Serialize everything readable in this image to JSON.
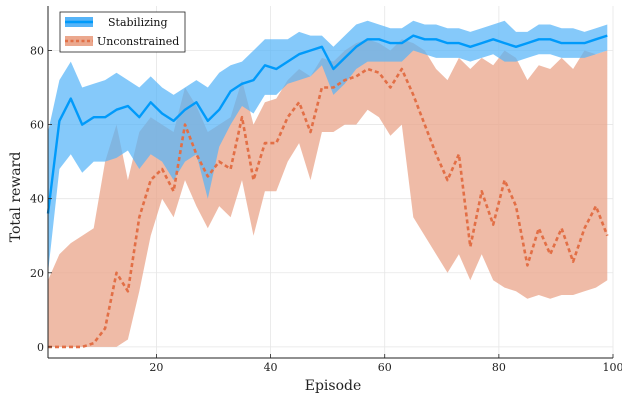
{
  "chart_data": {
    "type": "line",
    "title": "",
    "xlabel": "Episode",
    "ylabel": "Total reward",
    "xlim": [
      1,
      100
    ],
    "ylim": [
      -3,
      92
    ],
    "xticks": [
      20,
      40,
      60,
      80,
      100
    ],
    "yticks": [
      0,
      20,
      40,
      60,
      80
    ],
    "grid": true,
    "legend_position": "top-left",
    "series": [
      {
        "name": "Stabilizing",
        "color": "#009AFA",
        "band_color": "#56B4F8",
        "x": [
          1,
          3,
          5,
          7,
          9,
          11,
          13,
          15,
          17,
          19,
          21,
          23,
          25,
          27,
          29,
          31,
          33,
          35,
          37,
          39,
          41,
          43,
          45,
          47,
          49,
          51,
          53,
          55,
          57,
          59,
          61,
          63,
          65,
          67,
          69,
          71,
          73,
          75,
          77,
          79,
          81,
          83,
          85,
          87,
          89,
          91,
          93,
          95,
          97,
          99
        ],
        "values": [
          36,
          61,
          67,
          60,
          62,
          62,
          64,
          65,
          62,
          66,
          63,
          61,
          64,
          66,
          61,
          64,
          69,
          71,
          72,
          76,
          75,
          77,
          79,
          80,
          81,
          75,
          78,
          81,
          83,
          83,
          82,
          82,
          84,
          83,
          83,
          82,
          82,
          81,
          82,
          83,
          82,
          81,
          82,
          83,
          83,
          82,
          82,
          82,
          83,
          84
        ],
        "upper": [
          58,
          72,
          77,
          70,
          71,
          72,
          74,
          72,
          70,
          73,
          70,
          68,
          70,
          72,
          70,
          74,
          76,
          77,
          80,
          83,
          83,
          83,
          85,
          84,
          84,
          81,
          84,
          87,
          88,
          87,
          86,
          86,
          88,
          87,
          87,
          86,
          86,
          85,
          86,
          87,
          88,
          85,
          85,
          87,
          87,
          86,
          86,
          85,
          86,
          87
        ],
        "lower": [
          20,
          48,
          52,
          47,
          50,
          50,
          51,
          53,
          48,
          52,
          50,
          45,
          50,
          52,
          40,
          54,
          60,
          65,
          63,
          68,
          68,
          71,
          72,
          73,
          76,
          68,
          71,
          75,
          77,
          77,
          77,
          77,
          80,
          79,
          78,
          78,
          78,
          77,
          78,
          79,
          77,
          77,
          78,
          79,
          79,
          78,
          78,
          78,
          79,
          80
        ]
      },
      {
        "name": "Unconstrained",
        "color": "#E26F46",
        "band_color": "#EBA88E",
        "x": [
          1,
          3,
          5,
          7,
          9,
          11,
          13,
          15,
          17,
          19,
          21,
          23,
          25,
          27,
          29,
          31,
          33,
          35,
          37,
          39,
          41,
          43,
          45,
          47,
          49,
          51,
          53,
          55,
          57,
          59,
          61,
          63,
          65,
          67,
          69,
          71,
          73,
          75,
          77,
          79,
          81,
          83,
          85,
          87,
          89,
          91,
          93,
          95,
          97,
          99
        ],
        "values": [
          0,
          0,
          0,
          0,
          1,
          5,
          20,
          15,
          35,
          45,
          48,
          42,
          60,
          52,
          46,
          50,
          48,
          62,
          45,
          55,
          55,
          62,
          66,
          58,
          70,
          70,
          72,
          73,
          75,
          74,
          70,
          75,
          68,
          60,
          52,
          45,
          52,
          27,
          42,
          33,
          45,
          38,
          22,
          32,
          25,
          32,
          23,
          32,
          38,
          30
        ],
        "upper": [
          18,
          25,
          28,
          30,
          32,
          50,
          60,
          45,
          58,
          62,
          60,
          58,
          70,
          65,
          58,
          60,
          62,
          72,
          60,
          66,
          67,
          72,
          75,
          73,
          78,
          77,
          80,
          82,
          83,
          82,
          80,
          83,
          82,
          80,
          75,
          72,
          78,
          75,
          78,
          76,
          80,
          78,
          72,
          76,
          75,
          78,
          75,
          80,
          79,
          80
        ],
        "lower": [
          0,
          0,
          0,
          0,
          0,
          0,
          0,
          2,
          15,
          30,
          40,
          35,
          45,
          38,
          32,
          38,
          35,
          45,
          30,
          42,
          42,
          50,
          55,
          45,
          58,
          58,
          60,
          60,
          64,
          62,
          57,
          60,
          35,
          30,
          25,
          20,
          25,
          18,
          25,
          18,
          16,
          15,
          13,
          14,
          13,
          14,
          14,
          15,
          16,
          18
        ]
      }
    ]
  }
}
